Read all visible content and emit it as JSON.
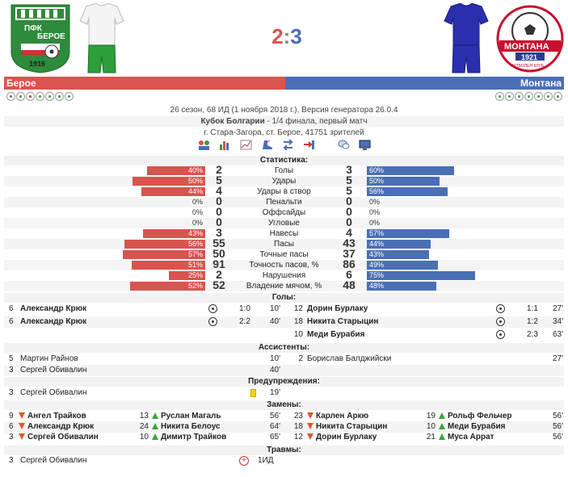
{
  "home_logo": {
    "text_top": "ПФК",
    "text_name": "БЕРОЕ",
    "year": "1916",
    "color": "#2e8b3c"
  },
  "away_logo": {
    "text_name": "МОНТАНА",
    "year": "1921",
    "text_club": "ФУТБОЛЕН КЛУБ",
    "color": "#c8102e"
  },
  "score": {
    "home": "2",
    "sep": ":",
    "away": "3"
  },
  "teams": {
    "home": "Берое",
    "away": "Монтана",
    "home_color": "#d9534f",
    "away_color": "#4a6fb5"
  },
  "home_stars": [
    "g",
    "g",
    "r",
    "g",
    "g",
    "g",
    "g"
  ],
  "away_stars": [
    "g",
    "g",
    "g",
    "g",
    "g",
    "g",
    "g"
  ],
  "info": {
    "line1": "26 сезон, 68 ИД (1 ноября 2018 г.), Версия генератора 26.0.4",
    "cup": "Кубок Болгарии",
    "round": " - 1/4 финала, первый матч",
    "venue": "г. Стара-Загора, ст. Берое, 41751 зрителей"
  },
  "toolbar_icons": [
    "players-icon",
    "bar-chart-icon",
    "field-chart-icon",
    "shoe-icon",
    "substitution-icon",
    "exit-icon",
    "chat-icon",
    "tv-icon"
  ],
  "stats_title": "Статистика:",
  "stats": [
    {
      "label": "Голы",
      "home": "2",
      "away": "3",
      "hp": "40%",
      "ap": "60%",
      "h": 40,
      "a": 60
    },
    {
      "label": "Удары",
      "home": "5",
      "away": "5",
      "hp": "50%",
      "ap": "50%",
      "h": 50,
      "a": 50
    },
    {
      "label": "Удары в створ",
      "home": "4",
      "away": "5",
      "hp": "44%",
      "ap": "56%",
      "h": 44,
      "a": 56
    },
    {
      "label": "Пенальти",
      "home": "0",
      "away": "0",
      "hp": "0%",
      "ap": "0%",
      "h": 0,
      "a": 0
    },
    {
      "label": "Оффсайды",
      "home": "0",
      "away": "0",
      "hp": "0%",
      "ap": "0%",
      "h": 0,
      "a": 0
    },
    {
      "label": "Угловые",
      "home": "0",
      "away": "0",
      "hp": "0%",
      "ap": "0%",
      "h": 0,
      "a": 0
    },
    {
      "label": "Навесы",
      "home": "3",
      "away": "4",
      "hp": "43%",
      "ap": "57%",
      "h": 43,
      "a": 57
    },
    {
      "label": "Пасы",
      "home": "55",
      "away": "43",
      "hp": "56%",
      "ap": "44%",
      "h": 56,
      "a": 44
    },
    {
      "label": "Точные пасы",
      "home": "50",
      "away": "37",
      "hp": "57%",
      "ap": "43%",
      "h": 57,
      "a": 43
    },
    {
      "label": "Точность пасов, %",
      "home": "91",
      "away": "86",
      "hp": "51%",
      "ap": "49%",
      "h": 51,
      "a": 49
    },
    {
      "label": "Нарушения",
      "home": "2",
      "away": "6",
      "hp": "25%",
      "ap": "75%",
      "h": 25,
      "a": 75
    },
    {
      "label": "Владение мячом, %",
      "home": "52",
      "away": "48",
      "hp": "52%",
      "ap": "48%",
      "h": 52,
      "a": 48
    }
  ],
  "goals_title": "Голы:",
  "goals_home": [
    {
      "num": "6",
      "name": "Александр Крюк",
      "score": "1:0",
      "min": "10'"
    },
    {
      "num": "6",
      "name": "Александр Крюк",
      "score": "2:2",
      "min": "40'"
    }
  ],
  "goals_away": [
    {
      "num": "12",
      "name": "Дорин Бурлаку",
      "score": "1:1",
      "min": "27'"
    },
    {
      "num": "18",
      "name": "Никита Старыцин",
      "score": "1:2",
      "min": "34'"
    },
    {
      "num": "10",
      "name": "Меди Бурабия",
      "score": "2:3",
      "min": "63'"
    }
  ],
  "assists_title": "Ассистенты:",
  "assists_home": [
    {
      "num": "5",
      "name": "Мартин Райнов",
      "min": "10'"
    },
    {
      "num": "3",
      "name": "Сергей Обивалин",
      "min": "40'"
    }
  ],
  "assists_away": [
    {
      "num": "2",
      "name": "Борислав Балджийски",
      "min": "27'"
    }
  ],
  "cards_title": "Предупреждения:",
  "cards_home": [
    {
      "num": "3",
      "name": "Сергей Обивалин",
      "min": "19'"
    }
  ],
  "subs_title": "Замены:",
  "subs_home": [
    {
      "out_num": "9",
      "out": "Ангел Трайков",
      "in_num": "13",
      "in": "Руслан Магаль",
      "min": "56'"
    },
    {
      "out_num": "6",
      "out": "Александр Крюк",
      "in_num": "24",
      "in": "Никита Белоус",
      "min": "64'"
    },
    {
      "out_num": "3",
      "out": "Сергей Обивалин",
      "in_num": "10",
      "in": "Димитр Трайков",
      "min": "65'"
    }
  ],
  "subs_away": [
    {
      "out_num": "23",
      "out": "Карлен Аркю",
      "in_num": "19",
      "in": "Рольф Фельчер",
      "min": "56'"
    },
    {
      "out_num": "18",
      "out": "Никита Старыцин",
      "in_num": "10",
      "in": "Меди Бурабия",
      "min": "56'"
    },
    {
      "out_num": "12",
      "out": "Дорин Бурлаку",
      "in_num": "21",
      "in": "Муса Аррат",
      "min": "56'"
    }
  ],
  "injuries_title": "Травмы:",
  "injuries_home": [
    {
      "num": "3",
      "name": "Сергей Обивалин",
      "time": "1ИД"
    }
  ]
}
